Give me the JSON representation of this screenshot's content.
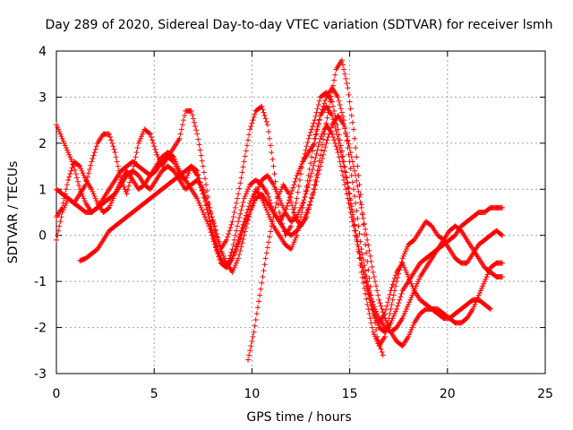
{
  "chart_data": {
    "type": "scatter",
    "title": "Day 289 of 2020, Sidereal Day-to-day VTEC variation (SDTVAR) for receiver lsmh",
    "xlabel": "GPS time / hours",
    "ylabel": "SDTVAR / TECUs",
    "xlim": [
      0,
      25
    ],
    "ylim": [
      -3,
      4
    ],
    "xticks": [
      0,
      5,
      10,
      15,
      20,
      25
    ],
    "yticks": [
      -3,
      -2,
      -1,
      0,
      1,
      2,
      3,
      4
    ],
    "grid": true,
    "marker": "+",
    "color": "#ff0000",
    "series": [
      {
        "x": [
          0.0,
          0.3,
          0.6,
          0.9,
          1.2,
          1.5,
          1.8,
          2.1,
          2.4,
          2.7,
          3.0,
          3.3,
          3.6,
          3.9,
          4.2,
          4.5,
          4.8,
          5.1,
          5.4,
          5.7,
          6.0,
          6.3,
          6.6,
          6.9,
          7.2,
          7.5,
          7.8,
          8.1,
          8.4,
          8.7,
          9.0,
          9.3,
          9.6,
          9.9,
          10.2,
          10.5,
          10.8,
          11.1,
          11.4,
          11.7,
          12.0,
          12.3,
          12.6,
          12.9,
          13.2,
          13.5,
          13.8,
          14.1,
          14.4,
          14.7,
          15.0,
          15.3,
          15.6,
          15.9,
          16.2,
          16.5,
          16.8,
          17.1,
          17.4,
          17.7,
          18.0,
          18.3,
          18.6,
          18.9,
          19.2,
          19.5,
          19.8,
          20.1,
          20.4,
          20.7,
          21.0,
          21.3,
          21.6,
          21.9,
          22.2,
          22.5,
          22.8
        ],
        "y": [
          -0.1,
          0.5,
          0.8,
          0.7,
          0.9,
          1.1,
          1.6,
          2.0,
          2.2,
          2.2,
          1.8,
          1.2,
          0.9,
          1.4,
          2.0,
          2.3,
          2.2,
          1.8,
          1.5,
          1.7,
          1.9,
          2.1,
          2.7,
          2.7,
          2.2,
          1.5,
          0.7,
          0.1,
          -0.3,
          -0.1,
          0.3,
          0.9,
          1.6,
          2.3,
          2.7,
          2.8,
          2.4,
          1.5,
          0.5,
          0.0,
          0.2,
          0.8,
          1.6,
          2.1,
          2.5,
          3.0,
          3.1,
          2.9,
          2.3,
          1.6,
          0.9,
          0.1,
          -0.8,
          -1.5,
          -2.1,
          -2.4,
          -2.2,
          -1.6,
          -1.0,
          -0.5,
          -0.2,
          -0.1,
          0.1,
          0.3,
          0.2,
          0.0,
          -0.1,
          -0.3,
          -0.5,
          -0.6,
          -0.6,
          -0.4,
          -0.2,
          -0.1,
          0.0,
          0.1,
          0.0
        ]
      },
      {
        "x": [
          0.0,
          0.3,
          0.6,
          0.9,
          1.2,
          1.5,
          1.8,
          2.1,
          2.4,
          2.7,
          3.0,
          3.3,
          3.6,
          3.9,
          4.2,
          4.5,
          4.8,
          5.1,
          5.4,
          5.7,
          6.0,
          6.3,
          6.6,
          6.9,
          7.2,
          7.5,
          7.8,
          8.1,
          8.4,
          8.7,
          9.0,
          9.3,
          9.6,
          9.9,
          10.2,
          10.5,
          10.8,
          11.1,
          11.4,
          11.7,
          12.0,
          12.3,
          12.6,
          12.9,
          13.2,
          13.5,
          13.8,
          14.1,
          14.4,
          14.7,
          15.0,
          15.3,
          15.6,
          15.9,
          16.2,
          16.5,
          16.8,
          17.1,
          17.4,
          17.7,
          18.0,
          18.3,
          18.6,
          18.9,
          19.2,
          19.5,
          19.8,
          20.1,
          20.4,
          20.7,
          21.0,
          21.3,
          21.6,
          21.9,
          22.2,
          22.5,
          22.8
        ],
        "y": [
          2.4,
          2.1,
          1.8,
          1.5,
          1.0,
          0.7,
          0.5,
          0.6,
          0.8,
          1.0,
          1.2,
          1.4,
          1.5,
          1.6,
          1.5,
          1.4,
          1.3,
          1.5,
          1.7,
          1.8,
          1.7,
          1.4,
          1.2,
          1.5,
          1.4,
          0.9,
          0.4,
          -0.2,
          -0.6,
          -0.7,
          -0.3,
          0.3,
          0.8,
          1.1,
          1.2,
          1.1,
          0.9,
          0.5,
          0.3,
          0.5,
          0.9,
          1.3,
          1.6,
          1.8,
          2.0,
          2.6,
          3.0,
          3.2,
          3.0,
          2.5,
          1.6,
          0.7,
          -0.3,
          -1.0,
          -1.6,
          -1.9,
          -1.7,
          -1.2,
          -0.8,
          -0.6,
          -0.9,
          -1.2,
          -1.4,
          -1.5,
          -1.6,
          -1.6,
          -1.7,
          -1.8,
          -1.9,
          -1.9,
          -1.8,
          -1.6,
          -1.3,
          -1.0,
          -0.7,
          -0.6,
          -0.6
        ]
      },
      {
        "x": [
          0.0,
          0.3,
          0.6,
          0.9,
          1.2,
          1.5,
          1.8,
          2.1,
          2.4,
          2.7,
          3.0,
          3.3,
          3.6,
          3.9,
          4.2,
          4.5,
          4.8,
          5.1,
          5.4,
          5.7,
          6.0,
          6.3,
          6.6,
          6.9,
          7.2,
          7.5,
          7.8,
          8.1,
          8.4,
          8.7,
          9.0,
          9.3,
          9.6,
          9.9,
          10.2,
          10.5,
          10.8,
          11.1,
          11.4,
          11.7,
          12.0,
          12.3,
          12.6,
          12.9,
          13.2,
          13.5,
          13.8,
          14.1,
          14.4,
          14.7,
          15.0,
          15.3,
          15.6,
          15.9,
          16.2,
          16.5,
          16.8,
          17.1,
          17.4,
          17.7,
          18.0,
          18.3,
          18.6,
          18.9,
          19.2,
          19.5,
          19.8,
          20.1,
          20.4,
          20.7,
          21.0,
          21.3,
          21.6,
          21.9,
          22.2,
          22.5,
          22.8
        ],
        "y": [
          0.4,
          0.6,
          1.2,
          1.6,
          1.5,
          1.2,
          1.0,
          0.7,
          0.5,
          0.6,
          0.9,
          1.2,
          1.4,
          1.2,
          1.0,
          1.1,
          1.3,
          1.4,
          1.6,
          1.7,
          1.6,
          1.3,
          1.2,
          1.0,
          0.8,
          0.5,
          0.2,
          -0.2,
          -0.5,
          -0.7,
          -0.5,
          -0.1,
          0.3,
          0.7,
          1.0,
          0.8,
          0.5,
          0.2,
          0.0,
          -0.2,
          -0.3,
          0.0,
          0.6,
          1.3,
          2.1,
          2.6,
          2.8,
          2.6,
          2.1,
          1.5,
          0.8,
          0.1,
          -0.6,
          -1.2,
          -1.7,
          -2.0,
          -2.1,
          -1.9,
          -1.6,
          -1.2,
          -1.0,
          -0.8,
          -0.6,
          -0.5,
          -0.4,
          -0.3,
          -0.2,
          -0.1,
          0.0,
          0.2,
          0.3,
          0.4,
          0.5,
          0.5,
          0.6,
          0.6,
          0.6
        ]
      },
      {
        "x": [
          0.0,
          0.3,
          0.6,
          0.9,
          1.2,
          1.5,
          1.8,
          2.1,
          2.4,
          2.7,
          3.0,
          3.3,
          3.6,
          3.9,
          4.2,
          4.5,
          4.8,
          5.1,
          5.4,
          5.7,
          6.0,
          6.3,
          6.6,
          6.9,
          7.2,
          7.5,
          7.8,
          8.1,
          8.4,
          8.7,
          9.0,
          9.3,
          9.6,
          9.9,
          10.2,
          10.5,
          10.8,
          11.1,
          11.4,
          11.7,
          12.0,
          12.3,
          12.6,
          12.9,
          13.2,
          13.5,
          13.8,
          14.1,
          14.4,
          14.7,
          15.0,
          15.3,
          15.6,
          15.9,
          16.2,
          16.5,
          16.8,
          17.1,
          17.4,
          17.7,
          18.0,
          18.3,
          18.6,
          18.9,
          19.2,
          19.5,
          19.8,
          20.1,
          20.4,
          20.7,
          21.0,
          21.3,
          21.6,
          21.9,
          22.2,
          22.5,
          22.8
        ],
        "y": [
          1.0,
          0.9,
          0.8,
          0.7,
          0.6,
          0.5,
          0.5,
          0.6,
          0.7,
          0.8,
          0.9,
          1.1,
          1.3,
          1.4,
          1.3,
          1.1,
          1.0,
          1.2,
          1.4,
          1.5,
          1.4,
          1.2,
          1.0,
          1.1,
          1.2,
          1.0,
          0.6,
          0.2,
          -0.3,
          -0.6,
          -0.8,
          -0.5,
          0.0,
          0.5,
          0.9,
          1.2,
          1.3,
          1.1,
          0.8,
          0.5,
          0.3,
          0.4,
          0.7,
          1.1,
          1.6,
          2.1,
          2.4,
          2.2,
          1.8,
          1.2,
          0.6,
          0.0,
          -0.6,
          -1.1,
          -1.5,
          -1.8,
          -2.0,
          -2.1,
          -2.0,
          -1.8,
          -1.5,
          -1.2,
          -0.9,
          -0.7,
          -0.5,
          -0.3,
          -0.1,
          0.1,
          0.2,
          0.1,
          -0.1,
          -0.3,
          -0.5,
          -0.7,
          -0.8,
          -0.9,
          -0.9
        ]
      },
      {
        "x": [
          1.2,
          1.5,
          1.8,
          2.1,
          2.4,
          2.7,
          3.0,
          3.3,
          3.6,
          3.9,
          4.2,
          4.5,
          4.8,
          5.1,
          5.4,
          5.7,
          6.0,
          6.3,
          6.6,
          6.9,
          7.2,
          7.5,
          7.8,
          8.1,
          8.4,
          8.7,
          9.0,
          9.3,
          9.6,
          9.9,
          10.2,
          10.5,
          10.8,
          11.1,
          11.4,
          11.7,
          12.0,
          12.3,
          12.6,
          12.9,
          13.2,
          13.5,
          13.8,
          14.1,
          14.4,
          14.7,
          15.0,
          15.3,
          15.6,
          15.9,
          16.2,
          16.5,
          16.8,
          17.1,
          17.4,
          17.7,
          18.0,
          18.3,
          18.6,
          18.9,
          19.2,
          19.5,
          19.8,
          20.1,
          20.4,
          20.7,
          21.0,
          21.3,
          21.6,
          21.9,
          22.2
        ],
        "y": [
          -0.55,
          -0.5,
          -0.4,
          -0.3,
          -0.1,
          0.1,
          0.2,
          0.3,
          0.4,
          0.5,
          0.6,
          0.7,
          0.8,
          0.9,
          1.0,
          1.1,
          1.2,
          1.3,
          1.4,
          1.5,
          1.3,
          0.9,
          0.4,
          -0.1,
          -0.5,
          -0.7,
          -0.5,
          -0.2,
          0.2,
          0.5,
          0.8,
          0.9,
          0.7,
          0.5,
          0.3,
          0.1,
          0.0,
          0.1,
          0.3,
          0.6,
          1.0,
          1.5,
          2.0,
          2.4,
          2.6,
          2.4,
          1.9,
          1.3,
          0.6,
          -0.1,
          -0.8,
          -1.4,
          -1.8,
          -2.1,
          -2.3,
          -2.4,
          -2.2,
          -1.9,
          -1.7,
          -1.6,
          -1.6,
          -1.7,
          -1.8,
          -1.8,
          -1.7,
          -1.6,
          -1.5,
          -1.4,
          -1.4,
          -1.5,
          -1.6
        ]
      },
      {
        "x": [
          9.8,
          10.1,
          10.4,
          10.7,
          11.0,
          11.3,
          11.6,
          11.9,
          12.2,
          12.5,
          12.8,
          13.1,
          13.4,
          13.7,
          14.0,
          14.3,
          14.6,
          14.9,
          15.2,
          15.5,
          15.8,
          16.1,
          16.4,
          16.7
        ],
        "y": [
          -2.7,
          -2.1,
          -1.3,
          -0.5,
          0.2,
          0.8,
          1.1,
          0.9,
          0.4,
          0.2,
          0.4,
          0.9,
          1.5,
          2.2,
          2.9,
          3.6,
          3.8,
          3.2,
          2.3,
          1.1,
          -0.2,
          -1.3,
          -2.2,
          -2.6
        ]
      }
    ]
  }
}
